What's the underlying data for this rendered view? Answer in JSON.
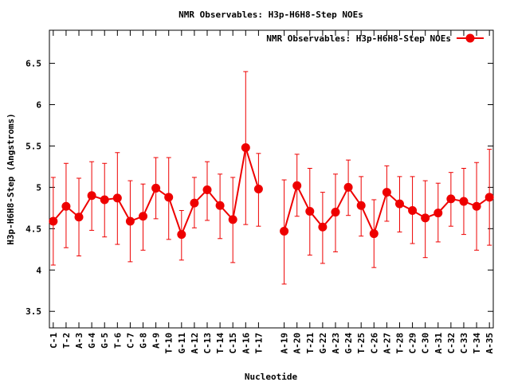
{
  "chart_data": {
    "type": "line",
    "title": "NMR Observables: H3p-H6H8-Step NOEs",
    "xlabel": "Nucleotide",
    "ylabel": "H3p-H6H8-Step (Angstroms)",
    "ylim": [
      3.3,
      6.9
    ],
    "yticks": [
      3.5,
      4,
      4.5,
      5,
      5.5,
      6,
      6.5
    ],
    "ytick_labels": [
      "3.5",
      "4",
      "4.5",
      "5",
      "5.5",
      "6",
      "6.5"
    ],
    "grid": false,
    "legend_position": "top-right",
    "categories": [
      "C-1",
      "T-2",
      "A-3",
      "G-4",
      "G-5",
      "T-6",
      "C-7",
      "G-8",
      "A-9",
      "T-10",
      "G-11",
      "A-12",
      "C-13",
      "T-14",
      "C-15",
      "A-16",
      "T-17",
      "A-19",
      "A-20",
      "T-21",
      "G-22",
      "A-23",
      "G-24",
      "T-25",
      "C-26",
      "A-27",
      "T-28",
      "C-29",
      "C-30",
      "A-31",
      "C-32",
      "C-33",
      "T-34",
      "A-35"
    ],
    "x_index": [
      1,
      2,
      3,
      4,
      5,
      6,
      7,
      8,
      9,
      10,
      11,
      12,
      13,
      14,
      15,
      16,
      17,
      19,
      20,
      21,
      22,
      23,
      24,
      25,
      26,
      27,
      28,
      29,
      30,
      31,
      32,
      33,
      34,
      35
    ],
    "series": [
      {
        "name": "NMR Observables: H3p-H6H8-Step NOEs",
        "color": "#ee0000",
        "segments": [
          [
            0,
            16
          ],
          [
            17,
            33
          ]
        ],
        "values": [
          4.59,
          4.77,
          4.64,
          4.9,
          4.85,
          4.87,
          4.59,
          4.65,
          4.99,
          4.88,
          4.43,
          4.81,
          4.97,
          4.78,
          4.61,
          5.48,
          4.98,
          4.47,
          5.02,
          4.71,
          4.52,
          4.7,
          5.0,
          4.78,
          4.44,
          4.94,
          4.8,
          4.72,
          4.63,
          4.69,
          4.86,
          4.83,
          4.77,
          4.88
        ],
        "err_low": [
          4.06,
          4.27,
          4.17,
          4.48,
          4.4,
          4.31,
          4.1,
          4.24,
          4.62,
          4.37,
          4.12,
          4.51,
          4.6,
          4.38,
          4.09,
          4.55,
          4.53,
          3.83,
          4.65,
          4.18,
          4.08,
          4.22,
          4.66,
          4.41,
          4.03,
          4.59,
          4.46,
          4.32,
          4.15,
          4.34,
          4.53,
          4.43,
          4.24,
          4.3
        ],
        "err_high": [
          5.12,
          5.29,
          5.11,
          5.31,
          5.29,
          5.42,
          5.08,
          5.04,
          5.36,
          5.36,
          4.72,
          5.12,
          5.31,
          5.16,
          5.12,
          6.4,
          5.41,
          5.09,
          5.4,
          5.23,
          4.94,
          5.16,
          5.33,
          5.13,
          4.85,
          5.26,
          5.13,
          5.13,
          5.08,
          5.05,
          5.18,
          5.23,
          5.3,
          5.46
        ]
      }
    ]
  }
}
